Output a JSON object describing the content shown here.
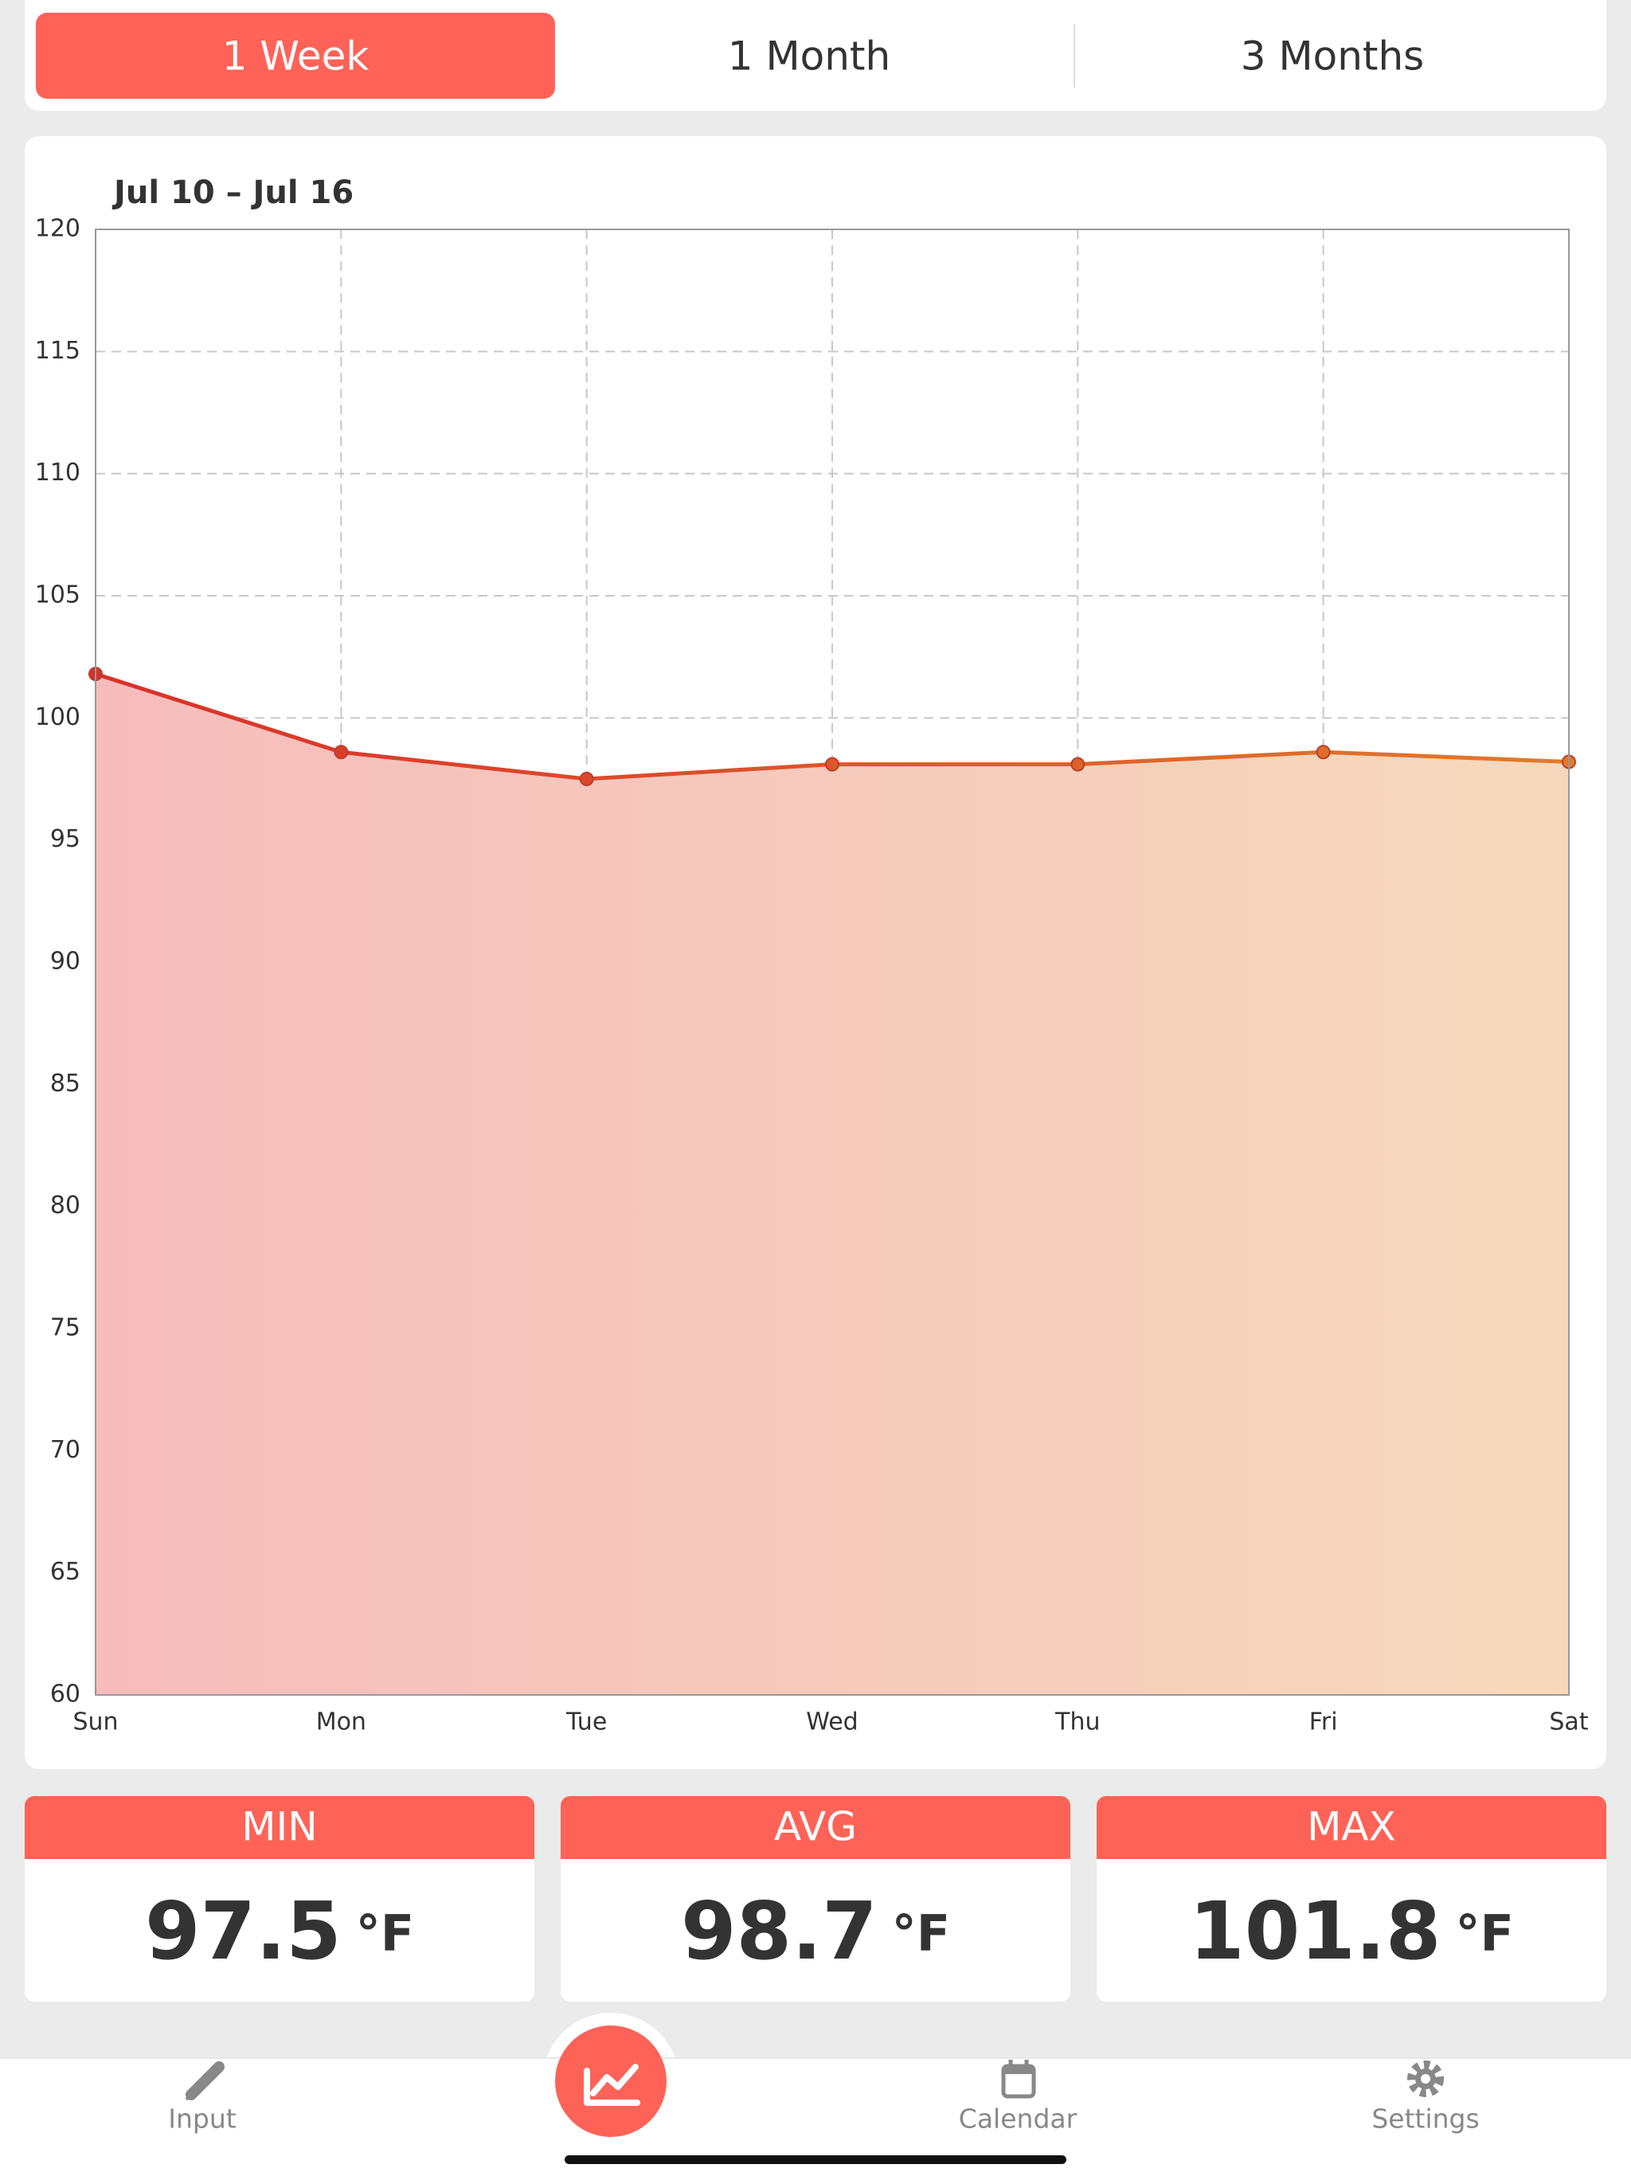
{
  "tabs": {
    "options": [
      "1 Week",
      "1 Month",
      "3 Months"
    ],
    "selected": 0
  },
  "chart_data": {
    "type": "line",
    "title": "Jul 10 – Jul 16",
    "categories": [
      "Sun",
      "Mon",
      "Tue",
      "Wed",
      "Thu",
      "Fri",
      "Sat"
    ],
    "series": [
      {
        "color": "#d9302a",
        "end_color": "#e27a2a",
        "fill_colors": [
          "#f6bcbc",
          "#f6d9bc"
        ],
        "values": [
          101.8,
          98.6,
          97.5,
          98.1,
          98.1,
          98.6,
          98.2
        ]
      }
    ],
    "ylim": [
      60,
      120
    ],
    "yticks": [
      60,
      65,
      70,
      75,
      80,
      85,
      90,
      95,
      100,
      105,
      110,
      115,
      120
    ],
    "grid": true
  },
  "stats": [
    {
      "label": "MIN",
      "value": "97.5",
      "unit": "°F"
    },
    {
      "label": "AVG",
      "value": "98.7",
      "unit": "°F"
    },
    {
      "label": "MAX",
      "value": "101.8",
      "unit": "°F"
    }
  ],
  "nav": {
    "items": [
      "Input",
      "Calendar",
      "Settings"
    ]
  }
}
